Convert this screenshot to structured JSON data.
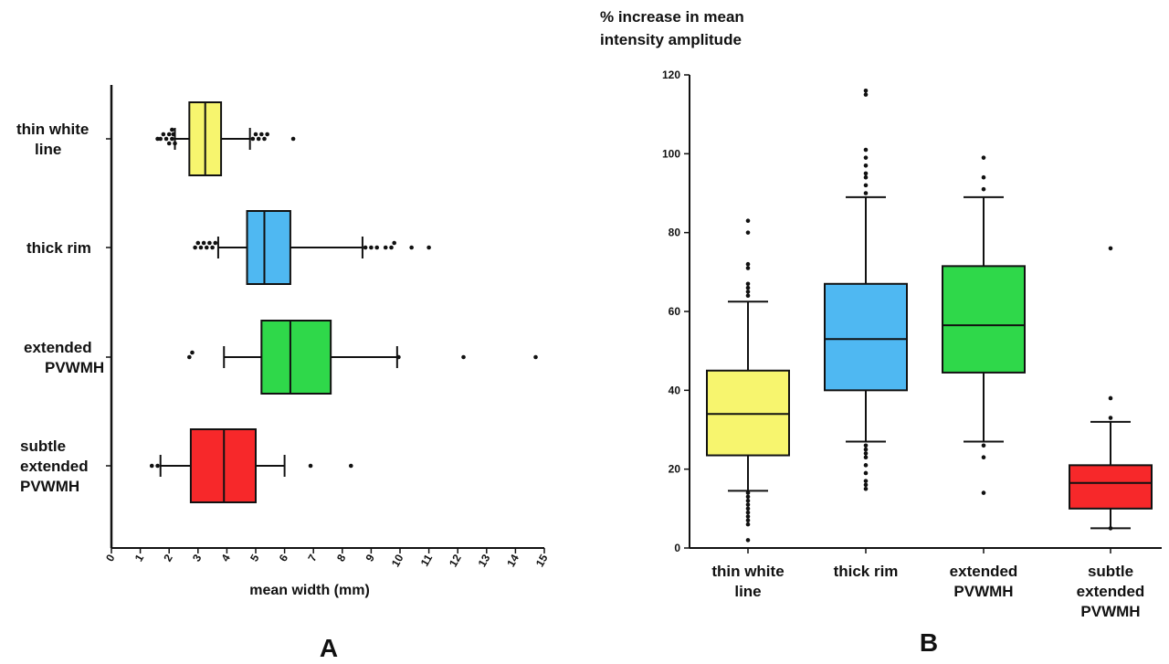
{
  "chart_data": [
    {
      "type": "box",
      "orientation": "horizontal",
      "panel_label": "A",
      "xlabel": "mean width (mm)",
      "ylabel": "",
      "xlim": [
        0,
        15
      ],
      "xticks": [
        "0",
        "1",
        "2",
        "3",
        "4",
        "5",
        "6",
        "7",
        "8",
        "9",
        "10",
        "11",
        "12",
        "13",
        "14",
        "15"
      ],
      "categories": [
        {
          "lines": [
            "thin white",
            "line"
          ]
        },
        {
          "lines": [
            "thick rim"
          ]
        },
        {
          "lines": [
            "extended",
            "PVWMH"
          ]
        },
        {
          "lines": [
            "subtle",
            "extended",
            "PVWMH"
          ]
        }
      ],
      "series": [
        {
          "whisker_low": 2.2,
          "q1": 2.7,
          "median": 3.25,
          "q3": 3.8,
          "whisker_high": 4.8,
          "outliers": [
            1.6,
            1.7,
            1.8,
            1.9,
            2.0,
            2.1,
            2.15,
            2.2,
            2.0,
            2.1,
            4.9,
            5.0,
            5.1,
            5.2,
            5.3,
            5.4,
            6.3
          ],
          "color": "#f7f56e"
        },
        {
          "whisker_low": 3.7,
          "q1": 4.7,
          "median": 5.3,
          "q3": 6.2,
          "whisker_high": 8.7,
          "outliers": [
            2.9,
            3.0,
            3.1,
            3.2,
            3.3,
            3.4,
            3.5,
            3.6,
            8.8,
            9.0,
            9.2,
            9.5,
            9.7,
            9.8,
            10.4,
            11.0
          ],
          "color": "#4fb8f2"
        },
        {
          "whisker_low": 3.9,
          "q1": 5.2,
          "median": 6.2,
          "q3": 7.6,
          "whisker_high": 9.9,
          "outliers": [
            2.7,
            2.8,
            9.95,
            12.2,
            14.7
          ],
          "color": "#2fd84a"
        },
        {
          "whisker_low": 1.7,
          "q1": 2.75,
          "median": 3.9,
          "q3": 5.0,
          "whisker_high": 6.0,
          "outliers": [
            1.4,
            1.6,
            6.9,
            8.3
          ],
          "color": "#f7282a"
        }
      ]
    },
    {
      "type": "box",
      "orientation": "vertical",
      "panel_label": "B",
      "title_lines": [
        "% increase in mean",
        "intensity amplitude"
      ],
      "ylim": [
        0,
        120
      ],
      "yticks": [
        "0",
        "20",
        "40",
        "60",
        "80",
        "100",
        "120"
      ],
      "categories": [
        {
          "lines": [
            "thin white",
            "line"
          ]
        },
        {
          "lines": [
            "thick rim"
          ]
        },
        {
          "lines": [
            "extended",
            "PVWMH"
          ]
        },
        {
          "lines": [
            "subtle",
            "extended",
            "PVWMH"
          ]
        }
      ],
      "series": [
        {
          "whisker_low": 14.5,
          "q1": 23.5,
          "median": 34.0,
          "q3": 45.0,
          "whisker_high": 62.5,
          "outliers": [
            2,
            6,
            7,
            8,
            9,
            10,
            11,
            12,
            13,
            14,
            64,
            65,
            66,
            67,
            71,
            72,
            80,
            83
          ],
          "color": "#f7f56e"
        },
        {
          "whisker_low": 27.0,
          "q1": 40.0,
          "median": 53.0,
          "q3": 67.0,
          "whisker_high": 89.0,
          "outliers": [
            15,
            16,
            17,
            19,
            21,
            23,
            24,
            25,
            26,
            90,
            92,
            94,
            95,
            97,
            99,
            101,
            115,
            116
          ],
          "color": "#4fb8f2"
        },
        {
          "whisker_low": 27.0,
          "q1": 44.5,
          "median": 56.5,
          "q3": 71.5,
          "whisker_high": 89.0,
          "outliers": [
            14,
            23,
            26,
            91,
            94,
            99
          ],
          "color": "#2fd84a"
        },
        {
          "whisker_low": 5.0,
          "q1": 10.0,
          "median": 16.5,
          "q3": 21.0,
          "whisker_high": 32.0,
          "outliers": [
            5,
            33,
            38,
            76
          ],
          "color": "#f7282a"
        }
      ]
    }
  ]
}
